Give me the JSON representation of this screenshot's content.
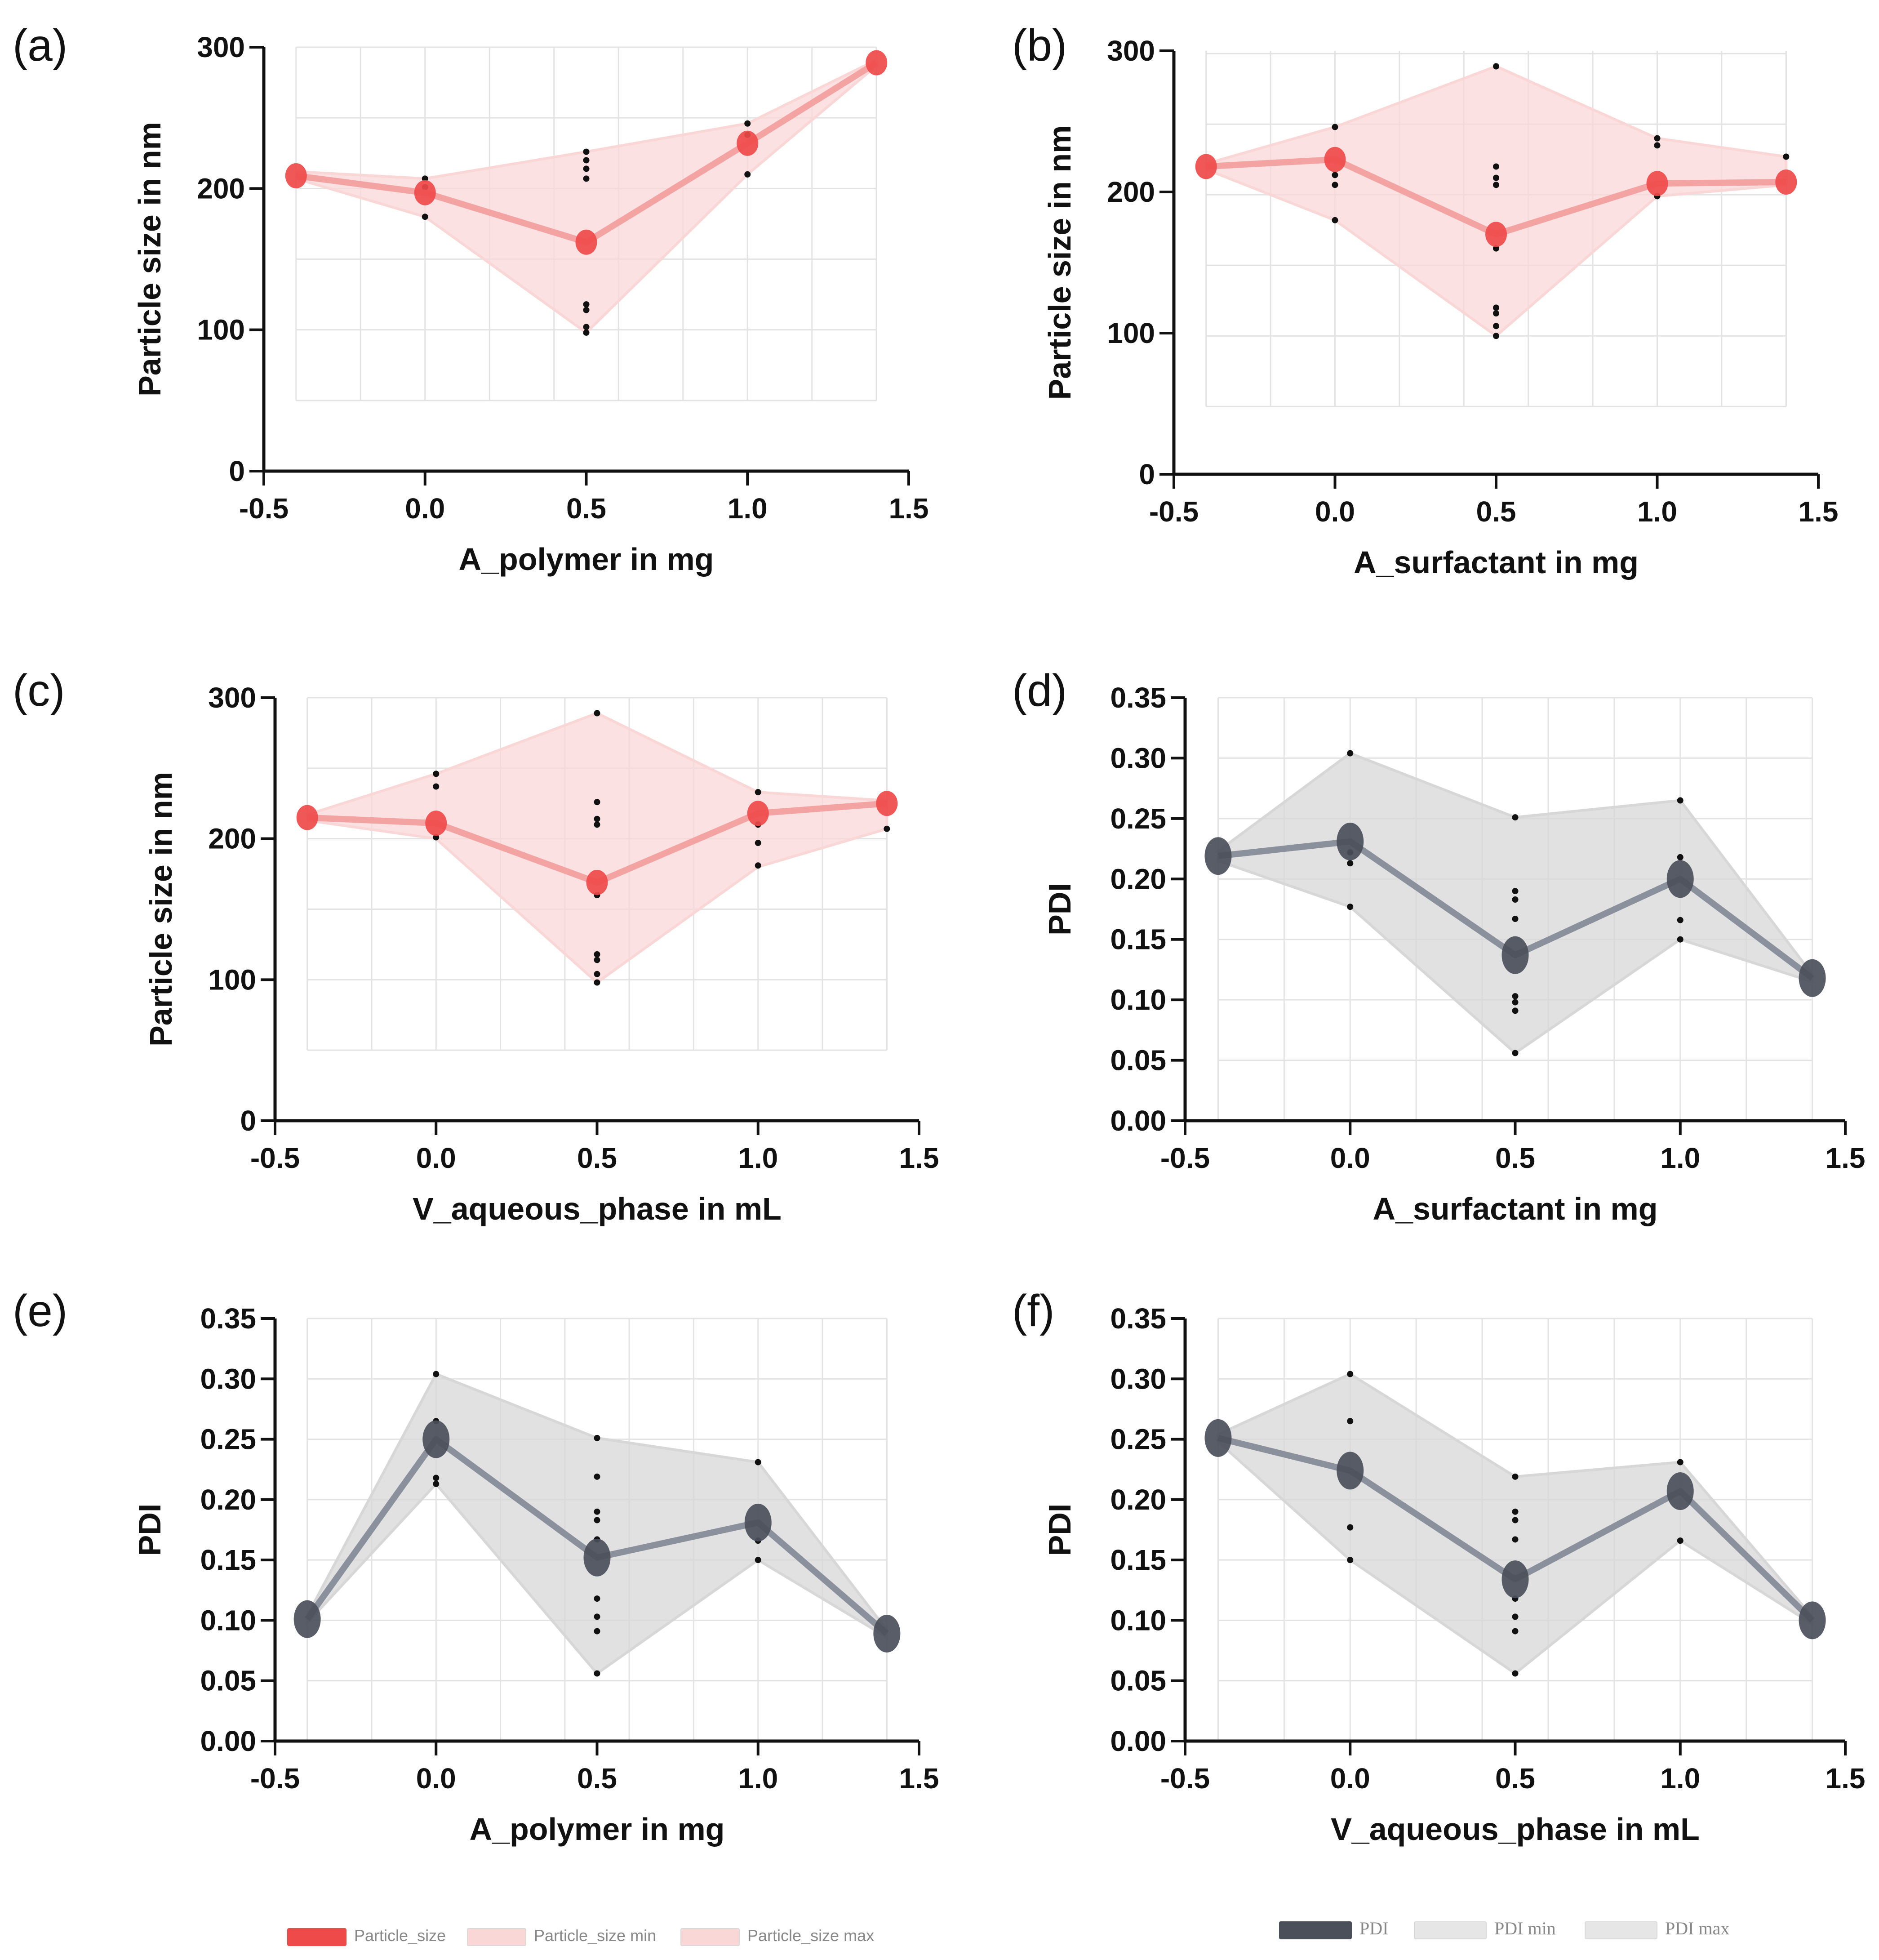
{
  "colors": {
    "ps_line": "#f4a3a3",
    "ps_marker": "#ef4a4a",
    "ps_band": "#fad7d7",
    "pdi_line": "#8a909c",
    "pdi_marker": "#4b4f5a",
    "pdi_band": "#d7d7d7",
    "raw_point": "#111111",
    "grid": "#e3e3e3"
  },
  "chart_data": [
    {
      "id": "a",
      "panel_label": "(a)",
      "type": "line",
      "xlabel": "A_polymer in mg",
      "ylabel": "Particle size in nm",
      "xlim": [
        -0.5,
        1.5
      ],
      "ylim": [
        0,
        300
      ],
      "xticks": [
        -0.5,
        0.0,
        0.5,
        1.0,
        1.5
      ],
      "xtick_labels": [
        "-0.5",
        "0.0",
        "0.5",
        "1.0",
        "1.5"
      ],
      "yticks": [
        0,
        100,
        200,
        300
      ],
      "ytick_labels": [
        "0",
        "100",
        "200",
        "300"
      ],
      "grid": true,
      "grid_x_minor_step": 0.2,
      "grid_y_minor_step": 50,
      "series_kind": "particle_size",
      "x": [
        -0.4,
        0.0,
        0.5,
        1.0,
        1.4
      ],
      "mean": [
        209,
        197,
        162,
        232,
        289
      ],
      "min": [
        207,
        180,
        98,
        210,
        287
      ],
      "max": [
        212,
        207,
        226,
        246,
        291
      ],
      "raw": [
        [
          0.0,
          207
        ],
        [
          0.0,
          201
        ],
        [
          0.0,
          180
        ],
        [
          0.5,
          226
        ],
        [
          0.5,
          220
        ],
        [
          0.5,
          214
        ],
        [
          0.5,
          207
        ],
        [
          0.5,
          118
        ],
        [
          0.5,
          114
        ],
        [
          0.5,
          102
        ],
        [
          0.5,
          98
        ],
        [
          1.0,
          246
        ],
        [
          1.0,
          238
        ],
        [
          1.0,
          210
        ]
      ],
      "plot_floor": 50
    },
    {
      "id": "b",
      "panel_label": "(b)",
      "type": "line",
      "xlabel": "A_surfactant in mg",
      "ylabel": "Particle size in nm",
      "xlim": [
        -0.5,
        1.5
      ],
      "ylim": [
        0,
        300
      ],
      "xticks": [
        -0.5,
        0.0,
        0.5,
        1.0,
        1.5
      ],
      "xtick_labels": [
        "-0.5",
        "0.0",
        "0.5",
        "1.0",
        "1.5"
      ],
      "yticks": [
        0,
        100,
        200,
        300
      ],
      "ytick_labels": [
        "0",
        "100",
        "200",
        "300"
      ],
      "grid": true,
      "grid_x_minor_step": 0.2,
      "grid_y_minor_step": 50,
      "series_kind": "particle_size",
      "x": [
        -0.4,
        0.0,
        0.5,
        1.0,
        1.4
      ],
      "mean": [
        218,
        223,
        170,
        206,
        207
      ],
      "min": [
        216,
        180,
        98,
        197,
        205
      ],
      "max": [
        220,
        246,
        289,
        238,
        225
      ],
      "raw": [
        [
          0.0,
          246
        ],
        [
          0.0,
          212
        ],
        [
          0.0,
          205
        ],
        [
          0.0,
          180
        ],
        [
          0.5,
          289
        ],
        [
          0.5,
          218
        ],
        [
          0.5,
          210
        ],
        [
          0.5,
          205
        ],
        [
          0.5,
          160
        ],
        [
          0.5,
          118
        ],
        [
          0.5,
          114
        ],
        [
          0.5,
          105
        ],
        [
          0.5,
          98
        ],
        [
          1.0,
          238
        ],
        [
          1.0,
          233
        ],
        [
          1.0,
          197
        ],
        [
          1.4,
          225
        ]
      ],
      "plot_floor": 48
    },
    {
      "id": "c",
      "panel_label": "(c)",
      "type": "line",
      "xlabel": "V_aqueous_phase in mL",
      "ylabel": "Particle size in nm",
      "xlim": [
        -0.5,
        1.5
      ],
      "ylim": [
        0,
        300
      ],
      "xticks": [
        -0.5,
        0.0,
        0.5,
        1.0,
        1.5
      ],
      "xtick_labels": [
        "-0.5",
        "0.0",
        "0.5",
        "1.0",
        "1.5"
      ],
      "yticks": [
        0,
        100,
        200,
        300
      ],
      "ytick_labels": [
        "0",
        "100",
        "200",
        "300"
      ],
      "grid": true,
      "grid_x_minor_step": 0.2,
      "grid_y_minor_step": 50,
      "series_kind": "particle_size",
      "x": [
        -0.4,
        0.0,
        0.5,
        1.0,
        1.4
      ],
      "mean": [
        215,
        211,
        169,
        218,
        225
      ],
      "min": [
        213,
        200,
        98,
        180,
        207
      ],
      "max": [
        217,
        246,
        289,
        233,
        227
      ],
      "raw": [
        [
          0.0,
          246
        ],
        [
          0.0,
          237
        ],
        [
          0.0,
          201
        ],
        [
          0.5,
          289
        ],
        [
          0.5,
          226
        ],
        [
          0.5,
          214
        ],
        [
          0.5,
          210
        ],
        [
          0.5,
          160
        ],
        [
          0.5,
          118
        ],
        [
          0.5,
          114
        ],
        [
          0.5,
          104
        ],
        [
          0.5,
          98
        ],
        [
          1.0,
          233
        ],
        [
          1.0,
          210
        ],
        [
          1.0,
          197
        ],
        [
          1.0,
          181
        ],
        [
          1.4,
          207
        ]
      ],
      "plot_floor": 50
    },
    {
      "id": "d",
      "panel_label": "(d)",
      "type": "line",
      "xlabel": "A_surfactant in mg",
      "ylabel": "PDI",
      "xlim": [
        -0.5,
        1.5
      ],
      "ylim": [
        0,
        0.35
      ],
      "xticks": [
        -0.5,
        0.0,
        0.5,
        1.0,
        1.5
      ],
      "xtick_labels": [
        "-0.5",
        "0.0",
        "0.5",
        "1.0",
        "1.5"
      ],
      "yticks": [
        0.0,
        0.05,
        0.1,
        0.15,
        0.2,
        0.25,
        0.3,
        0.35
      ],
      "ytick_labels": [
        "0.00",
        "0.05",
        "0.10",
        "0.15",
        "0.20",
        "0.25",
        "0.30",
        "0.35"
      ],
      "grid": true,
      "grid_x_minor_step": 0.2,
      "grid_y_minor_step": 0.05,
      "series_kind": "pdi",
      "x": [
        -0.4,
        0.0,
        0.5,
        1.0,
        1.4
      ],
      "mean": [
        0.219,
        0.231,
        0.137,
        0.2,
        0.118
      ],
      "min": [
        0.215,
        0.177,
        0.056,
        0.15,
        0.115
      ],
      "max": [
        0.223,
        0.304,
        0.251,
        0.265,
        0.121
      ],
      "raw": [
        [
          0.0,
          0.304
        ],
        [
          0.0,
          0.222
        ],
        [
          0.0,
          0.213
        ],
        [
          0.0,
          0.177
        ],
        [
          0.5,
          0.251
        ],
        [
          0.5,
          0.19
        ],
        [
          0.5,
          0.183
        ],
        [
          0.5,
          0.167
        ],
        [
          0.5,
          0.103
        ],
        [
          0.5,
          0.098
        ],
        [
          0.5,
          0.091
        ],
        [
          0.5,
          0.056
        ],
        [
          1.0,
          0.265
        ],
        [
          1.0,
          0.218
        ],
        [
          1.0,
          0.166
        ],
        [
          1.0,
          0.15
        ]
      ],
      "plot_floor": 0.0
    },
    {
      "id": "e",
      "panel_label": "(e)",
      "type": "line",
      "xlabel": "A_polymer in mg",
      "ylabel": "PDI",
      "xlim": [
        -0.5,
        1.5
      ],
      "ylim": [
        0,
        0.35
      ],
      "xticks": [
        -0.5,
        0.0,
        0.5,
        1.0,
        1.5
      ],
      "xtick_labels": [
        "-0.5",
        "0.0",
        "0.5",
        "1.0",
        "1.5"
      ],
      "yticks": [
        0.0,
        0.05,
        0.1,
        0.15,
        0.2,
        0.25,
        0.3,
        0.35
      ],
      "ytick_labels": [
        "0.00",
        "0.05",
        "0.10",
        "0.15",
        "0.20",
        "0.25",
        "0.30",
        "0.35"
      ],
      "grid": true,
      "grid_x_minor_step": 0.2,
      "grid_y_minor_step": 0.05,
      "series_kind": "pdi",
      "x": [
        -0.4,
        0.0,
        0.5,
        1.0,
        1.4
      ],
      "mean": [
        0.101,
        0.25,
        0.152,
        0.181,
        0.089
      ],
      "min": [
        0.098,
        0.213,
        0.056,
        0.15,
        0.086
      ],
      "max": [
        0.104,
        0.304,
        0.251,
        0.231,
        0.092
      ],
      "raw": [
        [
          0.0,
          0.304
        ],
        [
          0.0,
          0.265
        ],
        [
          0.0,
          0.218
        ],
        [
          0.0,
          0.213
        ],
        [
          0.5,
          0.251
        ],
        [
          0.5,
          0.219
        ],
        [
          0.5,
          0.19
        ],
        [
          0.5,
          0.183
        ],
        [
          0.5,
          0.167
        ],
        [
          0.5,
          0.118
        ],
        [
          0.5,
          0.103
        ],
        [
          0.5,
          0.091
        ],
        [
          0.5,
          0.056
        ],
        [
          1.0,
          0.231
        ],
        [
          1.0,
          0.166
        ],
        [
          1.0,
          0.15
        ]
      ],
      "plot_floor": 0.0
    },
    {
      "id": "f",
      "panel_label": "(f)",
      "type": "line",
      "xlabel": "V_aqueous_phase in mL",
      "ylabel": "PDI",
      "xlim": [
        -0.5,
        1.5
      ],
      "ylim": [
        0,
        0.35
      ],
      "xticks": [
        -0.5,
        0.0,
        0.5,
        1.0,
        1.5
      ],
      "xtick_labels": [
        "-0.5",
        "0.0",
        "0.5",
        "1.0",
        "1.5"
      ],
      "yticks": [
        0.0,
        0.05,
        0.1,
        0.15,
        0.2,
        0.25,
        0.3,
        0.35
      ],
      "ytick_labels": [
        "0.00",
        "0.05",
        "0.10",
        "0.15",
        "0.20",
        "0.25",
        "0.30",
        "0.35"
      ],
      "grid": true,
      "grid_x_minor_step": 0.2,
      "grid_y_minor_step": 0.05,
      "series_kind": "pdi",
      "x": [
        -0.4,
        0.0,
        0.5,
        1.0,
        1.4
      ],
      "mean": [
        0.251,
        0.224,
        0.134,
        0.207,
        0.1
      ],
      "min": [
        0.248,
        0.15,
        0.056,
        0.166,
        0.097
      ],
      "max": [
        0.254,
        0.304,
        0.219,
        0.231,
        0.103
      ],
      "raw": [
        [
          0.0,
          0.304
        ],
        [
          0.0,
          0.265
        ],
        [
          0.0,
          0.177
        ],
        [
          0.0,
          0.15
        ],
        [
          0.5,
          0.219
        ],
        [
          0.5,
          0.19
        ],
        [
          0.5,
          0.183
        ],
        [
          0.5,
          0.167
        ],
        [
          0.5,
          0.118
        ],
        [
          0.5,
          0.103
        ],
        [
          0.5,
          0.091
        ],
        [
          0.5,
          0.056
        ],
        [
          1.0,
          0.231
        ],
        [
          1.0,
          0.166
        ]
      ],
      "plot_floor": 0.0
    }
  ],
  "legends": {
    "particle_size": [
      "Particle_size",
      "Particle_size min",
      "Particle_size max"
    ],
    "pdi": [
      "PDI",
      "PDI min",
      "PDI max"
    ]
  }
}
